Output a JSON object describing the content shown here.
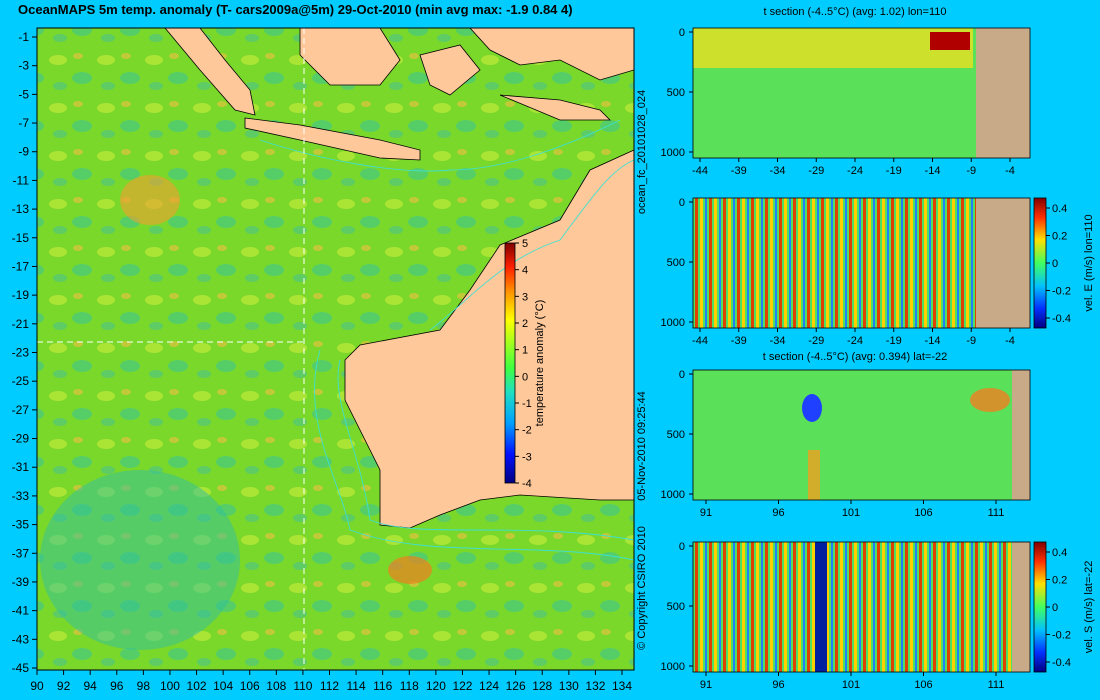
{
  "title": "OceanMAPS 5m temp. anomaly (T- cars2009a@5m) 29-Oct-2010 (min avg max: -1.9 0.84 4)",
  "map": {
    "y_ticks": [
      "-1",
      "-3",
      "-5",
      "-7",
      "-9",
      "-11",
      "-13",
      "-15",
      "-17",
      "-19",
      "-21",
      "-23",
      "-25",
      "-27",
      "-29",
      "-31",
      "-33",
      "-35",
      "-37",
      "-39",
      "-41",
      "-43",
      "-45"
    ],
    "x_ticks": [
      "90",
      "92",
      "94",
      "96",
      "98",
      "100",
      "102",
      "104",
      "106",
      "108",
      "110",
      "112",
      "114",
      "116",
      "118",
      "120",
      "122",
      "124",
      "126",
      "128",
      "130",
      "132",
      "134"
    ],
    "section_lon": 110,
    "section_lat": -22,
    "colorbar": {
      "label": "temperature anomaly (°C)",
      "ticks": [
        "5",
        "4",
        "3",
        "2",
        "1",
        "0",
        "-1",
        "-2",
        "-3",
        "-4"
      ]
    },
    "colors": {
      "ocean": "#7ad82a",
      "land": "#fec89a",
      "contour": "#40e0d0",
      "background": "#00ccff"
    }
  },
  "side_text": {
    "run": "ocean_fc_20101028_024",
    "timestamp": "05-Nov-2010 09:25:44",
    "copyright": "© Copyright CSIRO 2010"
  },
  "panels": [
    {
      "title": "t section (-4..5°C) (avg: 1.02) lon=110",
      "x_ticks": [
        "-44",
        "-39",
        "-34",
        "-29",
        "-24",
        "-19",
        "-14",
        "-9",
        "-4"
      ],
      "y_ticks": [
        "0",
        "500",
        "1000"
      ],
      "colorbar": null
    },
    {
      "title": "",
      "x_ticks": [
        "-44",
        "-39",
        "-34",
        "-29",
        "-24",
        "-19",
        "-14",
        "-9",
        "-4"
      ],
      "y_ticks": [
        "0",
        "500",
        "1000"
      ],
      "colorbar": {
        "label": "vel. E (m/s) lon=110",
        "ticks": [
          "0.4",
          "0.2",
          "0",
          "-0.2",
          "-0.4"
        ]
      }
    },
    {
      "title": "t section (-4..5°C) (avg: 0.394) lat=-22",
      "x_ticks": [
        "91",
        "96",
        "101",
        "106",
        "111"
      ],
      "y_ticks": [
        "0",
        "500",
        "1000"
      ],
      "colorbar": null
    },
    {
      "title": "",
      "x_ticks": [
        "91",
        "96",
        "101",
        "106",
        "111"
      ],
      "y_ticks": [
        "0",
        "500",
        "1000"
      ],
      "colorbar": {
        "label": "vel. S (m/s) lat=-22",
        "ticks": [
          "0.4",
          "0.2",
          "0",
          "-0.2",
          "-0.4"
        ]
      }
    }
  ]
}
